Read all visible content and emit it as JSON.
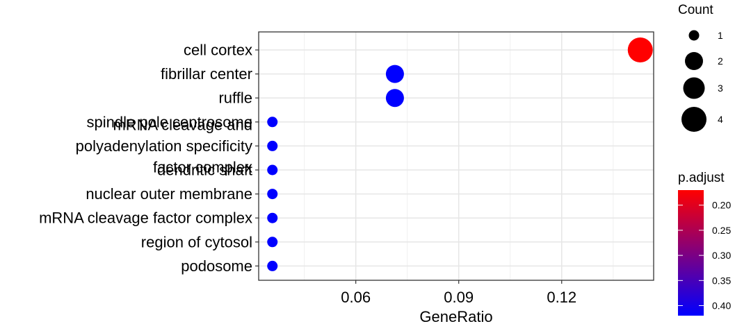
{
  "chart_data": {
    "type": "scatter",
    "xlabel": "GeneRatio",
    "ylabel": "",
    "x_ticks": [
      0.06,
      0.09,
      0.12
    ],
    "x_tick_labels": [
      "0.06",
      "0.09",
      "0.12"
    ],
    "xlim": [
      0.0317,
      0.1468
    ],
    "categories": [
      "cell cortex",
      "fibrillar center",
      "ruffle",
      "spindle pole centrosome",
      "mRNA cleavage and\npolyadenylation specificity\nfactor complex",
      "dendritic shaft",
      "nuclear outer membrane",
      "mRNA cleavage factor complex",
      "region of cytosol",
      "podosome"
    ],
    "points": [
      {
        "term": "cell cortex",
        "gene_ratio": 0.1429,
        "count": 4,
        "p_adjust": 0.17
      },
      {
        "term": "fibrillar center",
        "gene_ratio": 0.0714,
        "count": 2,
        "p_adjust": 0.42
      },
      {
        "term": "ruffle",
        "gene_ratio": 0.0714,
        "count": 2,
        "p_adjust": 0.42
      },
      {
        "term": "spindle pole centrosome",
        "gene_ratio": 0.0357,
        "count": 1,
        "p_adjust": 0.42
      },
      {
        "term": "mRNA cleavage and\npolyadenylation specificity\nfactor complex",
        "gene_ratio": 0.0357,
        "count": 1,
        "p_adjust": 0.42
      },
      {
        "term": "dendritic shaft",
        "gene_ratio": 0.0357,
        "count": 1,
        "p_adjust": 0.42
      },
      {
        "term": "nuclear outer membrane",
        "gene_ratio": 0.0357,
        "count": 1,
        "p_adjust": 0.42
      },
      {
        "term": "mRNA cleavage factor complex",
        "gene_ratio": 0.0357,
        "count": 1,
        "p_adjust": 0.42
      },
      {
        "term": "region of cytosol",
        "gene_ratio": 0.0357,
        "count": 1,
        "p_adjust": 0.42
      },
      {
        "term": "podosome",
        "gene_ratio": 0.0357,
        "count": 1,
        "p_adjust": 0.42
      }
    ],
    "size_legend": {
      "title": "Count",
      "values": [
        1,
        2,
        3,
        4
      ]
    },
    "color_legend": {
      "title": "p.adjust",
      "ticks": [
        0.2,
        0.25,
        0.3,
        0.35,
        0.4
      ],
      "tick_labels": [
        "0.20",
        "0.25",
        "0.30",
        "0.35",
        "0.40"
      ],
      "range": [
        0.17,
        0.42
      ],
      "low_color": "#ff0000",
      "high_color": "#0000ff"
    },
    "grid": true,
    "legend_position": "right"
  }
}
